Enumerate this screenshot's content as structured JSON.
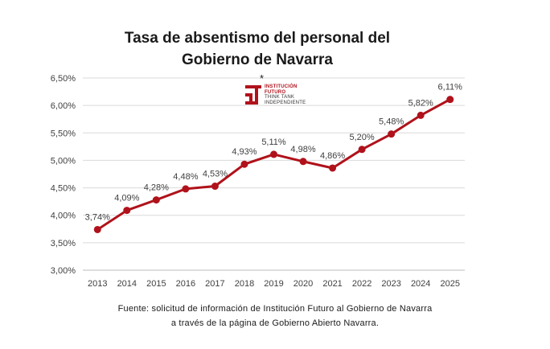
{
  "title_line1": "Tasa de absentismo del personal del",
  "title_line2": "Gobierno de Navarra",
  "source_line1": "Fuente: solicitud de información de Institución Futuro al Gobierno de Navarra",
  "source_line2": "a través de la página de Gobierno Abierto Navarra.",
  "logo": {
    "star": "*",
    "line1": "INSTITUCIÓN",
    "line2": "FUTURO",
    "line3": "THINK TANK",
    "line4": "INDEPENDIENTE",
    "color": "#b0121b"
  },
  "chart_data": {
    "type": "line",
    "title": "Tasa de absentismo del personal del Gobierno de Navarra",
    "xlabel": "",
    "ylabel": "",
    "categories": [
      "2013",
      "2014",
      "2015",
      "2016",
      "2017",
      "2018",
      "2019",
      "2020",
      "2021",
      "2022",
      "2023",
      "2024",
      "2025"
    ],
    "series": [
      {
        "values": [
          3.74,
          4.09,
          4.28,
          4.48,
          4.53,
          4.93,
          5.11,
          4.98,
          4.86,
          5.2,
          5.48,
          5.82,
          6.11
        ],
        "labels": [
          "3,74%",
          "4,09%",
          "4,28%",
          "4,48%",
          "4,53%",
          "4,93%",
          "5,11%",
          "4,98%",
          "4,86%",
          "5,20%",
          "5,48%",
          "5,82%",
          "6,11%"
        ],
        "color": "#b0121b"
      }
    ],
    "ylim": [
      3.0,
      6.5
    ],
    "yticks": [
      3.0,
      3.5,
      4.0,
      4.5,
      5.0,
      5.5,
      6.0,
      6.5
    ],
    "ytick_labels": [
      "3,00%",
      "3,50%",
      "4,00%",
      "4,50%",
      "5,00%",
      "5,50%",
      "6,00%",
      "6,50%"
    ],
    "grid": true,
    "legend": "none"
  }
}
